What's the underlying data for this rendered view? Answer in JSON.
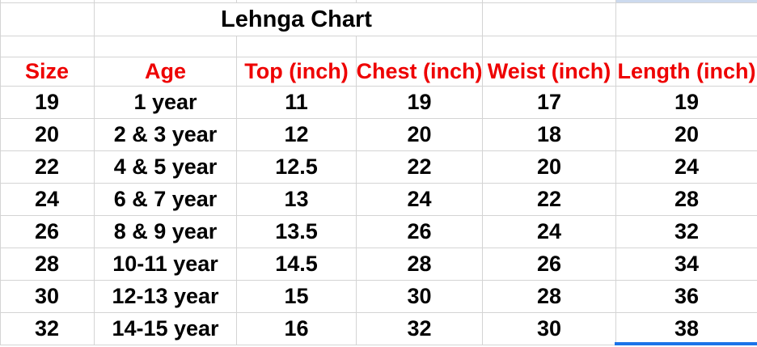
{
  "title": {
    "text": "Lehnga Chart"
  },
  "table": {
    "columns": [
      "Size",
      "Age",
      "Top (inch)",
      "Chest (inch)",
      "Weist (inch)",
      "Length (inch)"
    ],
    "rows": [
      [
        "19",
        "1 year",
        "11",
        "19",
        "17",
        "19"
      ],
      [
        "20",
        "2 & 3 year",
        "12",
        "20",
        "18",
        "20"
      ],
      [
        "22",
        "4 & 5 year",
        "12.5",
        "22",
        "20",
        "24"
      ],
      [
        "24",
        "6 & 7 year",
        "13",
        "24",
        "22",
        "28"
      ],
      [
        "26",
        "8 & 9 year",
        "13.5",
        "26",
        "24",
        "32"
      ],
      [
        "28",
        "10-11 year",
        "14.5",
        "28",
        "26",
        "34"
      ],
      [
        "30",
        "12-13 year",
        "15",
        "30",
        "28",
        "36"
      ],
      [
        "32",
        "14-15 year",
        "16",
        "32",
        "30",
        "38"
      ]
    ]
  },
  "colors": {
    "header_text": "#ee0000",
    "body_text": "#000000",
    "title_text": "#000000",
    "gridline": "#d4d4d4",
    "selection_border_blue": "#1a73e8",
    "selection_fill_light_blue": "#ccdaee",
    "background": "#ffffff"
  }
}
